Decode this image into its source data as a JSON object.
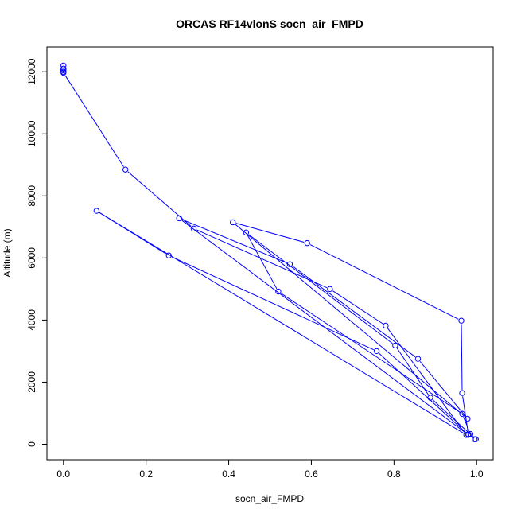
{
  "chart_data": {
    "type": "line",
    "title": "ORCAS RF14vlonS socn_air_FMPD",
    "xlabel": "socn_air_FMPD",
    "ylabel": "Altitude (m)",
    "xlim": [
      -0.04,
      1.04
    ],
    "ylim": [
      -500,
      12800
    ],
    "xticks": [
      0.0,
      0.2,
      0.4,
      0.6,
      0.8,
      1.0
    ],
    "xtick_labels": [
      "0.0",
      "0.2",
      "0.4",
      "0.6",
      "0.8",
      "1.0"
    ],
    "yticks": [
      0,
      2000,
      4000,
      6000,
      8000,
      10000,
      12000
    ],
    "ytick_labels": [
      "0",
      "2000",
      "4000",
      "6000",
      "8000",
      "10000",
      "12000"
    ],
    "grid": false,
    "legend": "none",
    "line_color": "#0000ff",
    "marker": "open-circle",
    "series": [
      {
        "x": [
          0.0,
          0.0,
          0.0,
          0.0,
          0.0,
          0.15,
          0.315,
          0.645,
          0.78,
          0.975,
          0.08,
          0.255,
          0.758,
          0.98,
          0.28,
          0.548,
          0.858,
          0.978,
          0.41,
          0.59,
          0.963,
          0.965,
          0.98,
          0.995,
          0.998,
          0.888,
          0.803,
          0.442,
          0.52,
          0.965,
          0.985
        ],
        "y": [
          12200,
          12100,
          12050,
          12000,
          11970,
          8850,
          6950,
          5000,
          3820,
          300,
          7520,
          6080,
          3000,
          300,
          7280,
          5800,
          2750,
          820,
          7150,
          6480,
          3980,
          1650,
          320,
          160,
          160,
          1500,
          3180,
          6820,
          4920,
          980,
          330
        ]
      }
    ]
  }
}
